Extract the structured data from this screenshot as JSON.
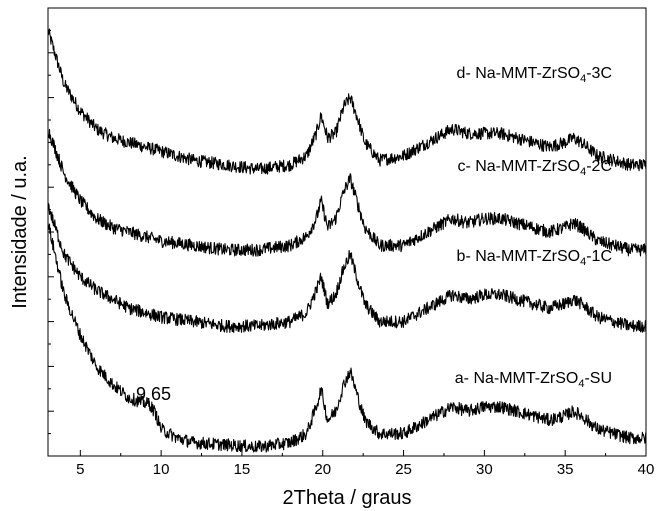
{
  "chart_data": {
    "type": "line",
    "title": "",
    "xlabel": "2Theta / graus",
    "ylabel": "Intensidade / u.a.",
    "xlim": [
      3,
      40
    ],
    "x_ticks": [
      "5",
      "10",
      "15",
      "20",
      "25",
      "30",
      "35",
      "40"
    ],
    "y_ticks_labeled": false,
    "grid": false,
    "legend": "none",
    "line_color": "#000000",
    "series": [
      {
        "label_prefix": "d- Na-MMT-ZrSO",
        "label_sub": "4",
        "label_suffix": "-3C",
        "points": [
          [
            3,
            0.95
          ],
          [
            4,
            0.83
          ],
          [
            5,
            0.77
          ],
          [
            6,
            0.73
          ],
          [
            7,
            0.71
          ],
          [
            8,
            0.7
          ],
          [
            9,
            0.69
          ],
          [
            10,
            0.68
          ],
          [
            12,
            0.66
          ],
          [
            14,
            0.65
          ],
          [
            16,
            0.64
          ],
          [
            18,
            0.65
          ],
          [
            19,
            0.67
          ],
          [
            19.6,
            0.72
          ],
          [
            19.9,
            0.76
          ],
          [
            20.3,
            0.71
          ],
          [
            20.8,
            0.72
          ],
          [
            21.3,
            0.78
          ],
          [
            21.7,
            0.8
          ],
          [
            22.1,
            0.76
          ],
          [
            22.6,
            0.7
          ],
          [
            23.5,
            0.66
          ],
          [
            25,
            0.67
          ],
          [
            26,
            0.69
          ],
          [
            27,
            0.71
          ],
          [
            28,
            0.73
          ],
          [
            29,
            0.72
          ],
          [
            30,
            0.72
          ],
          [
            31,
            0.72
          ],
          [
            32,
            0.71
          ],
          [
            33,
            0.7
          ],
          [
            34,
            0.69
          ],
          [
            35,
            0.7
          ],
          [
            35.5,
            0.71
          ],
          [
            36,
            0.7
          ],
          [
            37,
            0.67
          ],
          [
            38,
            0.66
          ],
          [
            39,
            0.65
          ],
          [
            40,
            0.65
          ]
        ]
      },
      {
        "label_prefix": "c- Na-MMT-ZrSO",
        "label_sub": "4",
        "label_suffix": "-2C",
        "points": [
          [
            3,
            0.73
          ],
          [
            4,
            0.63
          ],
          [
            5,
            0.57
          ],
          [
            6,
            0.53
          ],
          [
            7,
            0.51
          ],
          [
            8,
            0.5
          ],
          [
            9,
            0.49
          ],
          [
            10,
            0.48
          ],
          [
            12,
            0.47
          ],
          [
            14,
            0.46
          ],
          [
            16,
            0.46
          ],
          [
            18,
            0.47
          ],
          [
            19,
            0.49
          ],
          [
            19.6,
            0.53
          ],
          [
            19.9,
            0.57
          ],
          [
            20.3,
            0.51
          ],
          [
            20.8,
            0.53
          ],
          [
            21.3,
            0.59
          ],
          [
            21.7,
            0.62
          ],
          [
            22.1,
            0.57
          ],
          [
            22.6,
            0.51
          ],
          [
            23.5,
            0.47
          ],
          [
            25,
            0.47
          ],
          [
            26,
            0.49
          ],
          [
            27,
            0.51
          ],
          [
            28,
            0.53
          ],
          [
            29,
            0.52
          ],
          [
            30,
            0.53
          ],
          [
            31,
            0.53
          ],
          [
            32,
            0.52
          ],
          [
            33,
            0.51
          ],
          [
            34,
            0.5
          ],
          [
            35,
            0.51
          ],
          [
            35.5,
            0.52
          ],
          [
            36,
            0.51
          ],
          [
            37,
            0.48
          ],
          [
            38,
            0.47
          ],
          [
            39,
            0.46
          ],
          [
            40,
            0.46
          ]
        ]
      },
      {
        "label_prefix": "b- Na-MMT-ZrSO",
        "label_sub": "4",
        "label_suffix": "-1C",
        "points": [
          [
            3,
            0.56
          ],
          [
            4,
            0.45
          ],
          [
            5,
            0.4
          ],
          [
            6,
            0.37
          ],
          [
            7,
            0.35
          ],
          [
            8,
            0.33
          ],
          [
            9,
            0.32
          ],
          [
            10,
            0.31
          ],
          [
            12,
            0.3
          ],
          [
            14,
            0.29
          ],
          [
            16,
            0.29
          ],
          [
            18,
            0.3
          ],
          [
            19,
            0.32
          ],
          [
            19.6,
            0.37
          ],
          [
            19.9,
            0.4
          ],
          [
            20.3,
            0.34
          ],
          [
            20.8,
            0.36
          ],
          [
            21.3,
            0.42
          ],
          [
            21.7,
            0.45
          ],
          [
            22.1,
            0.4
          ],
          [
            22.6,
            0.34
          ],
          [
            23.5,
            0.3
          ],
          [
            25,
            0.3
          ],
          [
            26,
            0.32
          ],
          [
            27,
            0.34
          ],
          [
            28,
            0.36
          ],
          [
            29,
            0.35
          ],
          [
            30,
            0.36
          ],
          [
            31,
            0.36
          ],
          [
            32,
            0.35
          ],
          [
            33,
            0.34
          ],
          [
            34,
            0.33
          ],
          [
            35,
            0.34
          ],
          [
            35.5,
            0.35
          ],
          [
            36,
            0.34
          ],
          [
            37,
            0.31
          ],
          [
            38,
            0.3
          ],
          [
            39,
            0.29
          ],
          [
            40,
            0.29
          ]
        ]
      },
      {
        "label_prefix": "a- Na-MMT-ZrSO",
        "label_sub": "4",
        "label_suffix": "-SU",
        "points": [
          [
            3,
            0.52
          ],
          [
            3.5,
            0.44
          ],
          [
            4,
            0.36
          ],
          [
            5,
            0.27
          ],
          [
            6,
            0.2
          ],
          [
            7,
            0.16
          ],
          [
            8,
            0.13
          ],
          [
            8.8,
            0.12
          ],
          [
            9.3,
            0.115
          ],
          [
            9.65,
            0.095
          ],
          [
            10,
            0.06
          ],
          [
            11,
            0.04
          ],
          [
            12,
            0.03
          ],
          [
            14,
            0.025
          ],
          [
            16,
            0.02
          ],
          [
            18,
            0.03
          ],
          [
            19,
            0.05
          ],
          [
            19.6,
            0.11
          ],
          [
            19.9,
            0.15
          ],
          [
            20.3,
            0.08
          ],
          [
            20.8,
            0.1
          ],
          [
            21.3,
            0.16
          ],
          [
            21.7,
            0.19
          ],
          [
            22.1,
            0.14
          ],
          [
            22.6,
            0.08
          ],
          [
            23.5,
            0.05
          ],
          [
            25,
            0.05
          ],
          [
            26,
            0.07
          ],
          [
            27,
            0.09
          ],
          [
            28,
            0.11
          ],
          [
            29,
            0.1
          ],
          [
            30,
            0.11
          ],
          [
            31,
            0.11
          ],
          [
            32,
            0.1
          ],
          [
            33,
            0.09
          ],
          [
            34,
            0.08
          ],
          [
            35,
            0.09
          ],
          [
            35.5,
            0.1
          ],
          [
            36,
            0.09
          ],
          [
            37,
            0.06
          ],
          [
            38,
            0.05
          ],
          [
            39,
            0.04
          ],
          [
            40,
            0.04
          ]
        ]
      }
    ],
    "annotations": [
      {
        "text": "9,65",
        "x": 9.65,
        "series": "a"
      }
    ]
  }
}
